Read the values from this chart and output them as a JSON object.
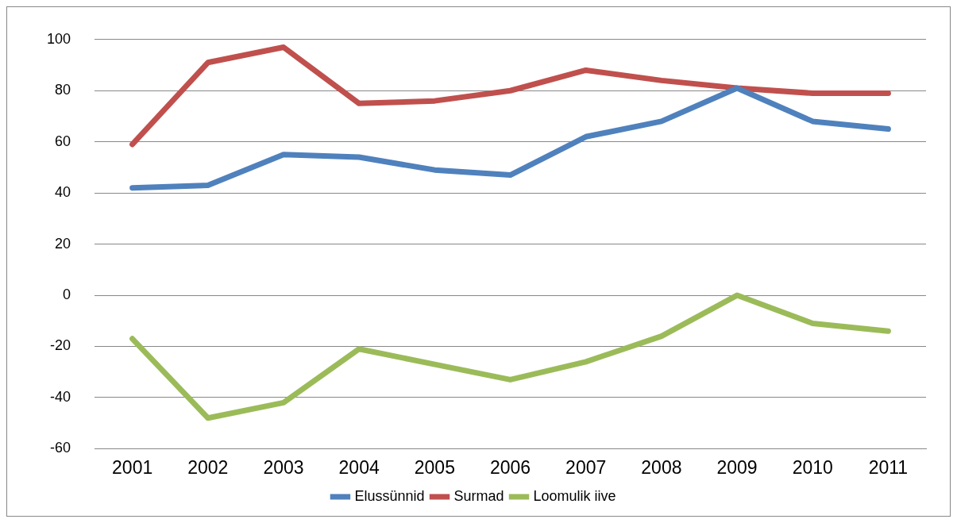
{
  "chart_data": {
    "type": "line",
    "categories": [
      "2001",
      "2002",
      "2003",
      "2004",
      "2005",
      "2006",
      "2007",
      "2008",
      "2009",
      "2010",
      "2011"
    ],
    "series": [
      {
        "name": "Elussünnid",
        "color": "#4f81bd",
        "values": [
          42,
          43,
          55,
          54,
          49,
          47,
          62,
          68,
          81,
          68,
          65
        ]
      },
      {
        "name": "Surmad",
        "color": "#c0504d",
        "values": [
          59,
          91,
          97,
          75,
          76,
          80,
          88,
          84,
          81,
          79,
          79
        ]
      },
      {
        "name": "Loomulik iive",
        "color": "#9bbb59",
        "values": [
          -17,
          -48,
          -42,
          -21,
          -27,
          -33,
          -26,
          -16,
          0,
          -11,
          -14
        ]
      }
    ],
    "ylim": [
      -60,
      100
    ],
    "yticks": [
      -60,
      -40,
      -20,
      0,
      20,
      40,
      60,
      80,
      100
    ],
    "grid": "y",
    "legend": "bottom",
    "marker": "none",
    "line_style": "solid"
  }
}
